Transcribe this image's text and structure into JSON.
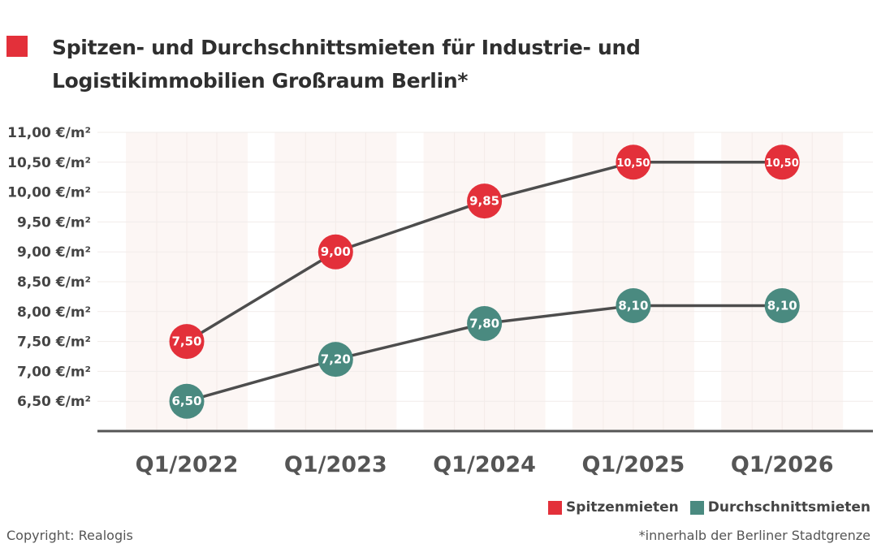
{
  "title": "Spitzen- und Durchschnittsmieten für Industrie- und Logistikimmobilien Großraum Berlin*",
  "colors": {
    "accent": "#e3303a",
    "spitzen": "#e3303a",
    "durchschnitt": "#4a8a80",
    "line": "#4d4d4d"
  },
  "chart_data": {
    "type": "line",
    "categories": [
      "Q1/2022",
      "Q1/2023",
      "Q1/2024",
      "Q1/2025",
      "Q1/2026"
    ],
    "y_ticks": [
      "6,50 €/m²",
      "7,00 €/m²",
      "7,50 €/m²",
      "8,00 €/m²",
      "8,50 €/m²",
      "9,00 €/m²",
      "9,50 €/m²",
      "10,00 €/m²",
      "10,50 €/m²",
      "11,00 €/m²"
    ],
    "ylim": [
      6.0,
      11.0
    ],
    "grid": true,
    "legend": "bottom-right",
    "series": [
      {
        "name": "Spitzenmieten",
        "values": [
          7.5,
          9.0,
          9.85,
          10.5,
          10.5
        ],
        "labels": [
          "7,50",
          "9,00",
          "9,85",
          "10,50",
          "10,50"
        ],
        "color": "#e3303a"
      },
      {
        "name": "Durchschnittsmieten",
        "values": [
          6.5,
          7.2,
          7.8,
          8.1,
          8.1
        ],
        "labels": [
          "6,50",
          "7,20",
          "7,80",
          "8,10",
          "8,10"
        ],
        "color": "#4a8a80"
      }
    ]
  },
  "footer": {
    "copyright": "Copyright: Realogis",
    "note": "*innerhalb der Berliner Stadtgrenze"
  }
}
